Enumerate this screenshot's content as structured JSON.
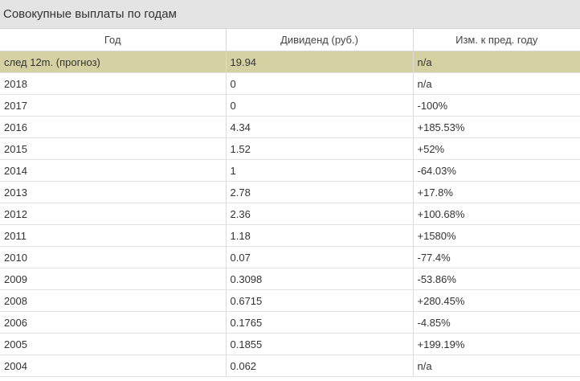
{
  "panel": {
    "title": "Совокупные выплаты по годам"
  },
  "table": {
    "headers": [
      "Год",
      "Дивиденд (руб.)",
      "Изм. к пред. году"
    ],
    "rows": [
      {
        "year": "след 12m. (прогноз)",
        "dividend": "19.94",
        "change": "n/a",
        "trend": "neu",
        "highlight": true
      },
      {
        "year": "2018",
        "dividend": "0",
        "change": "n/a",
        "trend": "neu"
      },
      {
        "year": "2017",
        "dividend": "0",
        "change": "-100%",
        "trend": "neg"
      },
      {
        "year": "2016",
        "dividend": "4.34",
        "change": "+185.53%",
        "trend": "pos"
      },
      {
        "year": "2015",
        "dividend": "1.52",
        "change": "+52%",
        "trend": "pos"
      },
      {
        "year": "2014",
        "dividend": "1",
        "change": "-64.03%",
        "trend": "neg"
      },
      {
        "year": "2013",
        "dividend": "2.78",
        "change": "+17.8%",
        "trend": "pos"
      },
      {
        "year": "2012",
        "dividend": "2.36",
        "change": "+100.68%",
        "trend": "pos"
      },
      {
        "year": "2011",
        "dividend": "1.18",
        "change": "+1580%",
        "trend": "pos"
      },
      {
        "year": "2010",
        "dividend": "0.07",
        "change": "-77.4%",
        "trend": "neg"
      },
      {
        "year": "2009",
        "dividend": "0.3098",
        "change": "-53.86%",
        "trend": "neg"
      },
      {
        "year": "2008",
        "dividend": "0.6715",
        "change": "+280.45%",
        "trend": "pos"
      },
      {
        "year": "2006",
        "dividend": "0.1765",
        "change": "-4.85%",
        "trend": "neg"
      },
      {
        "year": "2005",
        "dividend": "0.1855",
        "change": "+199.19%",
        "trend": "pos"
      },
      {
        "year": "2004",
        "dividend": "0.062",
        "change": "n/a",
        "trend": "neu"
      }
    ]
  },
  "colors": {
    "header_bg": "#e4e4e4",
    "forecast_row_bg": "#d5d1a3",
    "positive": "#2e7d32",
    "negative": "#e0303a"
  }
}
